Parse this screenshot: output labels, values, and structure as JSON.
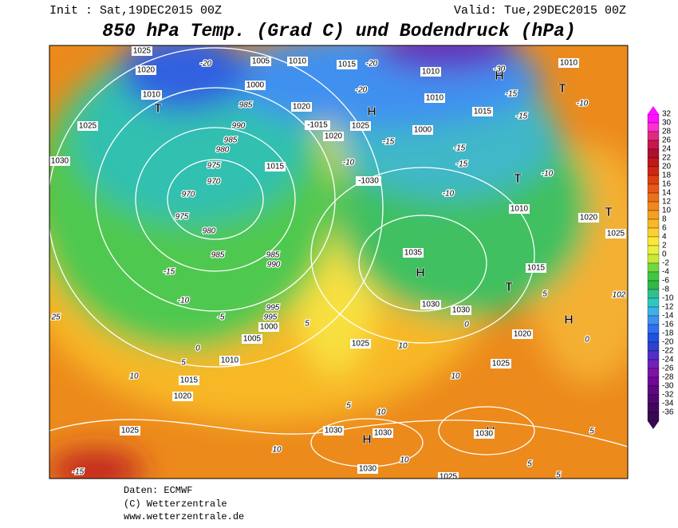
{
  "header": {
    "init": "Init : Sat,19DEC2015 00Z",
    "valid": "Valid: Tue,29DEC2015 00Z",
    "title": "850 hPa Temp. (Grad C) und Bodendruck (hPa)"
  },
  "map": {
    "labels": [
      "1025",
      "1020",
      "1010",
      "T",
      "1025",
      "1030",
      "-20",
      "1005",
      "1010",
      "1000",
      "985",
      "990",
      "985",
      "980",
      "975",
      "970",
      "970",
      "975",
      "980",
      "985",
      "-15",
      "-10",
      "-5",
      "0",
      "1005",
      "1010",
      "5",
      "1015",
      "1020",
      "10",
      "1025",
      "-15",
      "1015",
      "-20",
      "1010",
      "-30",
      "1010",
      "H",
      "-15",
      "1020",
      "-1015",
      "1020",
      "1025",
      "-20",
      "H",
      "1010",
      "1015",
      "-15",
      "1015",
      "-10",
      "-1030",
      "-15",
      "1000",
      "-15",
      "-15",
      "-10",
      "1010",
      "T",
      "-10",
      "1020",
      "T",
      "1025",
      "1035",
      "H",
      "1015",
      "T",
      "985",
      "990",
      "995",
      "995",
      "1000",
      "5",
      "1030",
      "1030",
      "0",
      "H",
      "1020",
      "1025",
      "1025",
      "10",
      "10",
      "5",
      "10",
      "1030",
      "H",
      "1030",
      "H",
      "1030",
      "10",
      "10",
      "1030",
      "1025",
      "5",
      "5",
      "5",
      "0",
      "5",
      "102",
      "25",
      "-10",
      "T"
    ]
  },
  "colorbar": {
    "ticks": [
      32,
      30,
      28,
      26,
      24,
      22,
      20,
      18,
      16,
      14,
      12,
      10,
      8,
      6,
      4,
      2,
      0,
      -2,
      -4,
      -6,
      -8,
      -10,
      -12,
      -14,
      -16,
      -18,
      -20,
      -22,
      -24,
      -26,
      -28,
      -30,
      -32,
      -34,
      -36
    ],
    "colors": [
      "#ff10ff",
      "#ff30d0",
      "#e02a80",
      "#c8184a",
      "#b01030",
      "#c01818",
      "#d02810",
      "#e04010",
      "#e85818",
      "#ec7018",
      "#f08820",
      "#f4a020",
      "#f8b828",
      "#fcd030",
      "#fce838",
      "#e8f040",
      "#c8e838",
      "#70d840",
      "#40c840",
      "#30b848",
      "#30c090",
      "#30c8c0",
      "#40b0e8",
      "#4090f0",
      "#3070f0",
      "#2050e0",
      "#3040d0",
      "#5030c8",
      "#7020b8",
      "#8010a8",
      "#700898",
      "#600880",
      "#500870",
      "#400860",
      "#380850"
    ]
  },
  "footer": {
    "source": "Daten: ECMWF",
    "copyright": "(C) Wetterzentrale",
    "url": "www.wetterzentrale.de"
  }
}
